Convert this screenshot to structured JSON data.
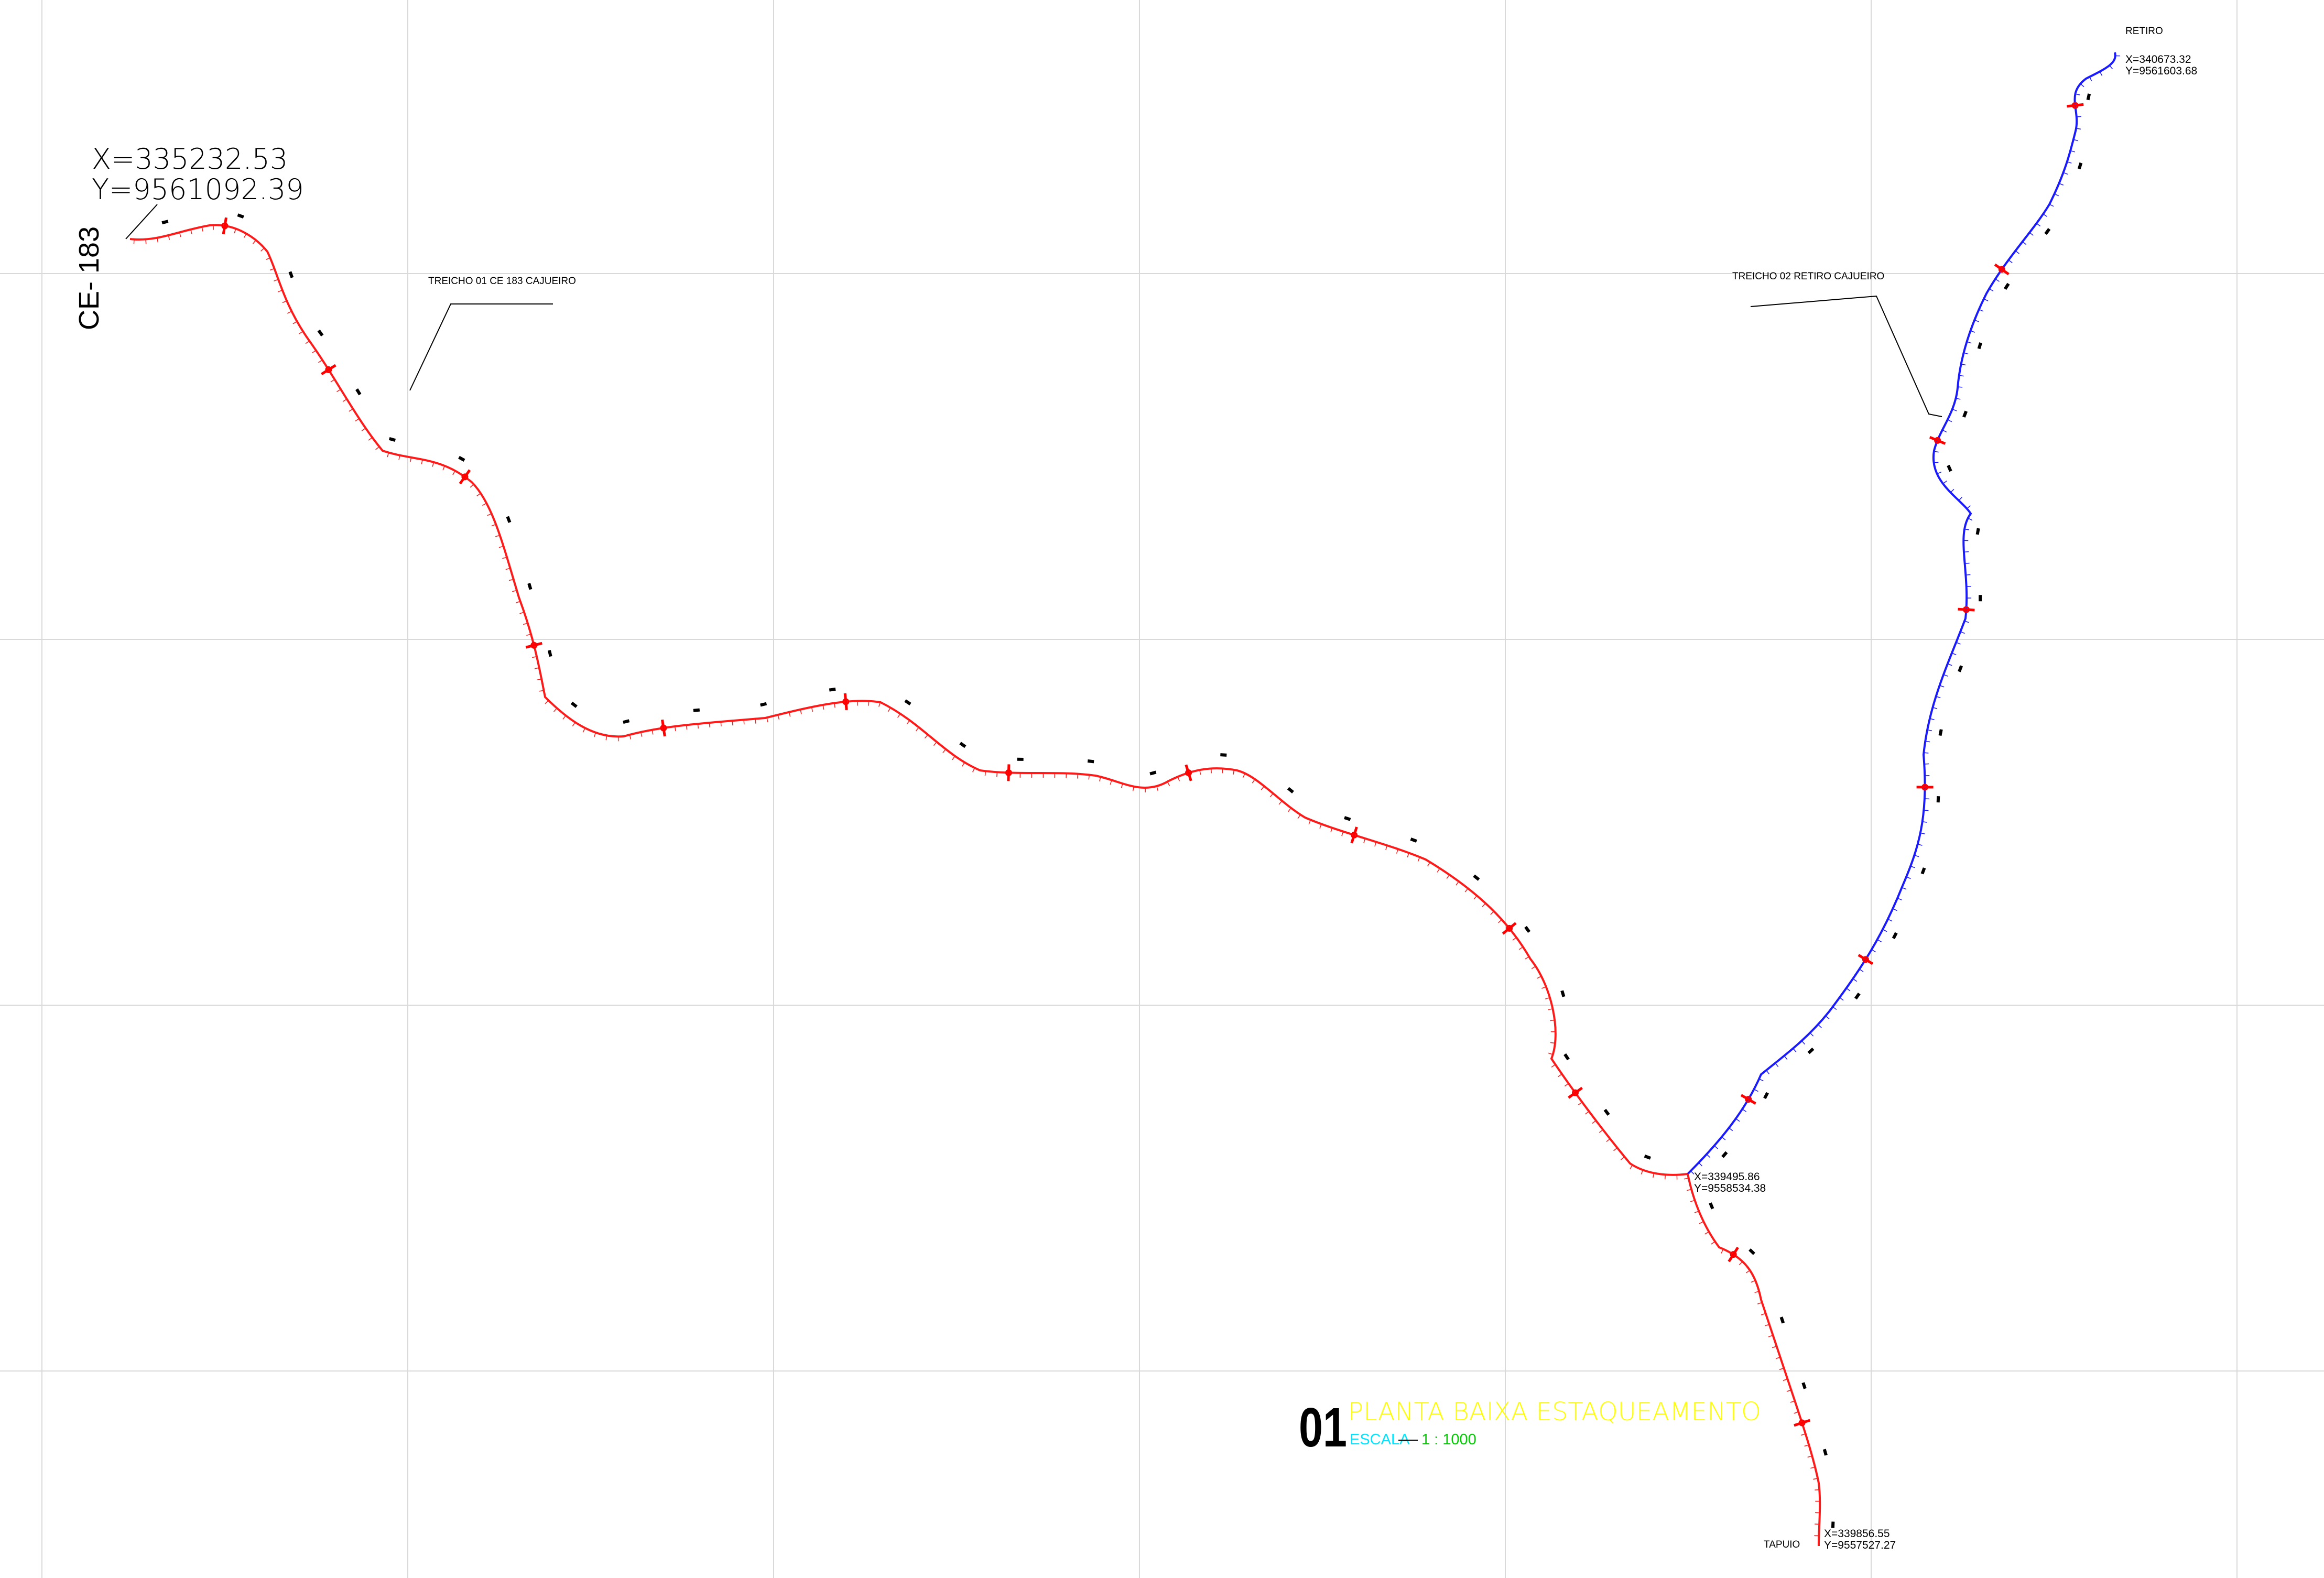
{
  "labels": {
    "start_coords": {
      "x": "X=335232.53",
      "y": "Y=9561092.39"
    },
    "road_name": "CE- 183",
    "section1": "TREICHO 01 CE 183 CAJUEIRO",
    "section2": "TREICHO 02 RETIRO CAJUEIRO",
    "retiro": {
      "name": "RETIRO",
      "x": "X=340673.32",
      "y": "Y=9561603.68"
    },
    "junction": {
      "x": "X=339495.86",
      "y": "Y=9558534.38"
    },
    "tapuio": {
      "name": "TAPUIO",
      "x": "X=339856.55",
      "y": "Y=9557527.27"
    }
  },
  "title_block": {
    "number": "01",
    "title": "PLANTA  BAIXA  ESTAQUEAMENTO",
    "scale_label": "ESCALA",
    "scale_value": "1 : 1000",
    "colors": {
      "number": "#000000",
      "title": "#ffff00",
      "scale_label": "#00e5ff",
      "scale_value": "#00cc00"
    }
  },
  "routes": {
    "trecho01": {
      "color": "#ff1a1a"
    },
    "trecho02": {
      "color": "#1a1aff"
    },
    "tapuio_branch": {
      "color": "#ff1a1a"
    }
  },
  "grid": {
    "color": "#d9d9d9"
  }
}
